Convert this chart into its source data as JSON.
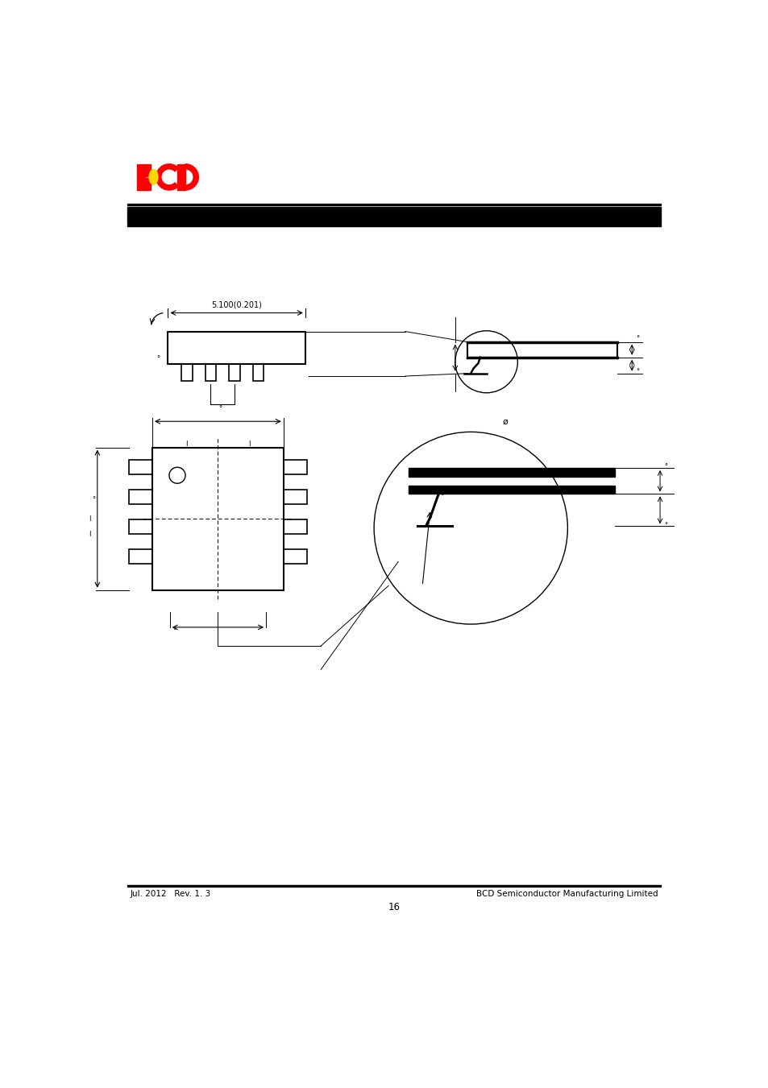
{
  "page_width": 9.54,
  "page_height": 13.51,
  "bg_color": "#ffffff",
  "header_bar_color": "#000000",
  "footer_left": "Jul. 2012   Rev. 1. 3",
  "footer_right": "BCD Semiconductor Manufacturing Limited",
  "footer_page": "16",
  "dim_label_top": "5.100(0.201)"
}
